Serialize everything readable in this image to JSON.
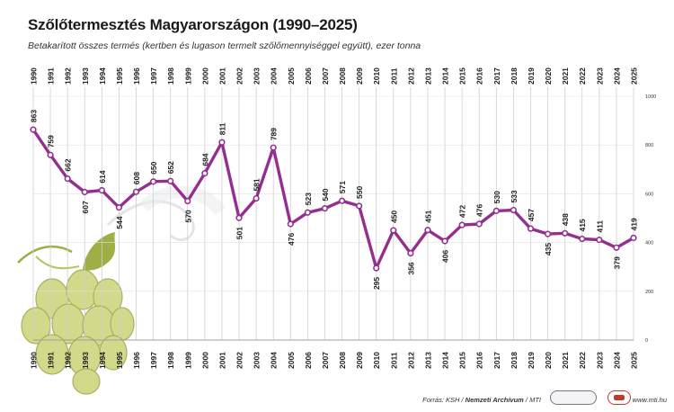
{
  "header": {
    "title": "Szőlőtermesztés Magyarországon (1990–2025)",
    "subtitle": "Betakarított összes termés (kertben és lugason termelt szőlőmennyiséggel együtt), ezer tonna"
  },
  "footer": {
    "source_prefix": "Forrás: KSH / ",
    "source_bold": "Nemzeti Archívum",
    "source_suffix": " / MTI",
    "website": "www.mti.hu"
  },
  "colors": {
    "line": "#93308f",
    "marker_fill": "#ffffff",
    "grid": "#cfcfcf",
    "grape": "#d3d98a",
    "leaf": "#9fae45"
  },
  "chart_data": {
    "type": "line",
    "x": [
      1990,
      1991,
      1992,
      1993,
      1994,
      1995,
      1996,
      1997,
      1998,
      1999,
      2000,
      2001,
      2002,
      2003,
      2004,
      2005,
      2006,
      2007,
      2008,
      2009,
      2010,
      2011,
      2012,
      2013,
      2014,
      2015,
      2016,
      2017,
      2018,
      2019,
      2020,
      2021,
      2022,
      2023,
      2024,
      2025
    ],
    "series": [
      {
        "values": [
          863,
          759,
          662,
          607,
          614,
          544,
          608,
          650,
          652,
          570,
          684,
          811,
          501,
          581,
          789,
          476,
          523,
          540,
          571,
          550,
          295,
          450,
          356,
          451,
          406,
          472,
          476,
          530,
          533,
          457,
          435,
          438,
          415,
          411,
          379,
          419
        ]
      }
    ],
    "ylim": [
      0,
      1000
    ],
    "yticks": [
      0,
      200,
      400,
      600,
      800,
      1000
    ],
    "grid": true
  }
}
